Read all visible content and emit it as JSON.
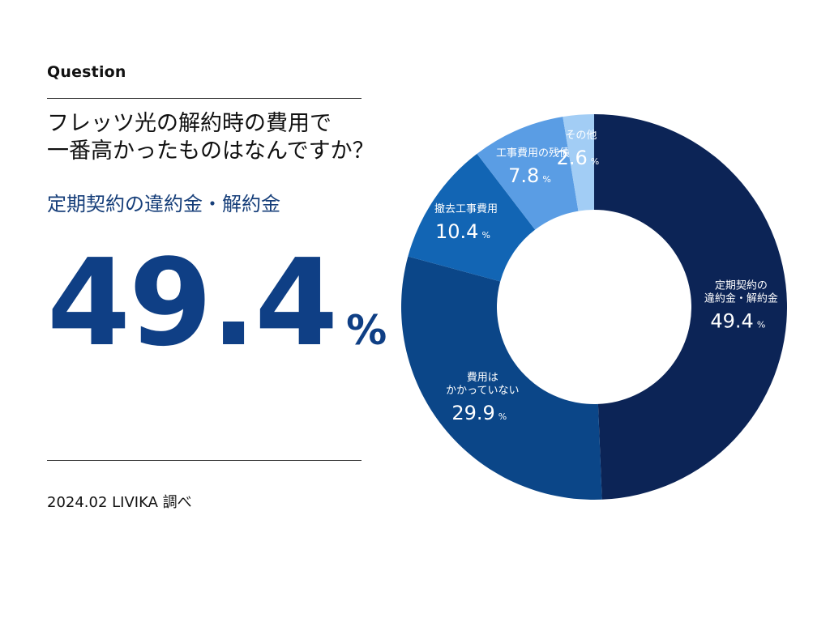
{
  "header": {
    "label": "Question",
    "question_line1": "フレッツ光の解約時の費用で",
    "question_line2": "一番高かったものはなんですか？"
  },
  "highlight": {
    "label": "定期契約の違約金・解約金",
    "value": "49.4",
    "unit": "%"
  },
  "footer": {
    "source": "2024.02 LIVIKA 調べ"
  },
  "colors": {
    "highlight_text": "#173f7a",
    "big_number": "#0f3f85"
  },
  "chart_data": {
    "type": "pie",
    "style": "donut",
    "unit": "%",
    "series": [
      {
        "name": "定期契約の違約金・解約金",
        "lines": [
          "定期契約の",
          "違約金・解約金"
        ],
        "value": 49.4,
        "label": "49.4",
        "color": "#0c2456"
      },
      {
        "name": "費用はかかっていない",
        "lines": [
          "費用は",
          "かかっていない"
        ],
        "value": 29.9,
        "label": "29.9",
        "color": "#0b4688"
      },
      {
        "name": "撤去工事費用",
        "lines": [
          "撤去工事費用"
        ],
        "value": 10.4,
        "label": "10.4",
        "color": "#1265b4"
      },
      {
        "name": "工事費用の残債",
        "lines": [
          "工事費用の残債"
        ],
        "value": 7.8,
        "label": "7.8",
        "color": "#5a9de4"
      },
      {
        "name": "その他",
        "lines": [
          "その他"
        ],
        "value": 2.6,
        "label": "2.6",
        "color": "#a2cdf5"
      }
    ]
  }
}
